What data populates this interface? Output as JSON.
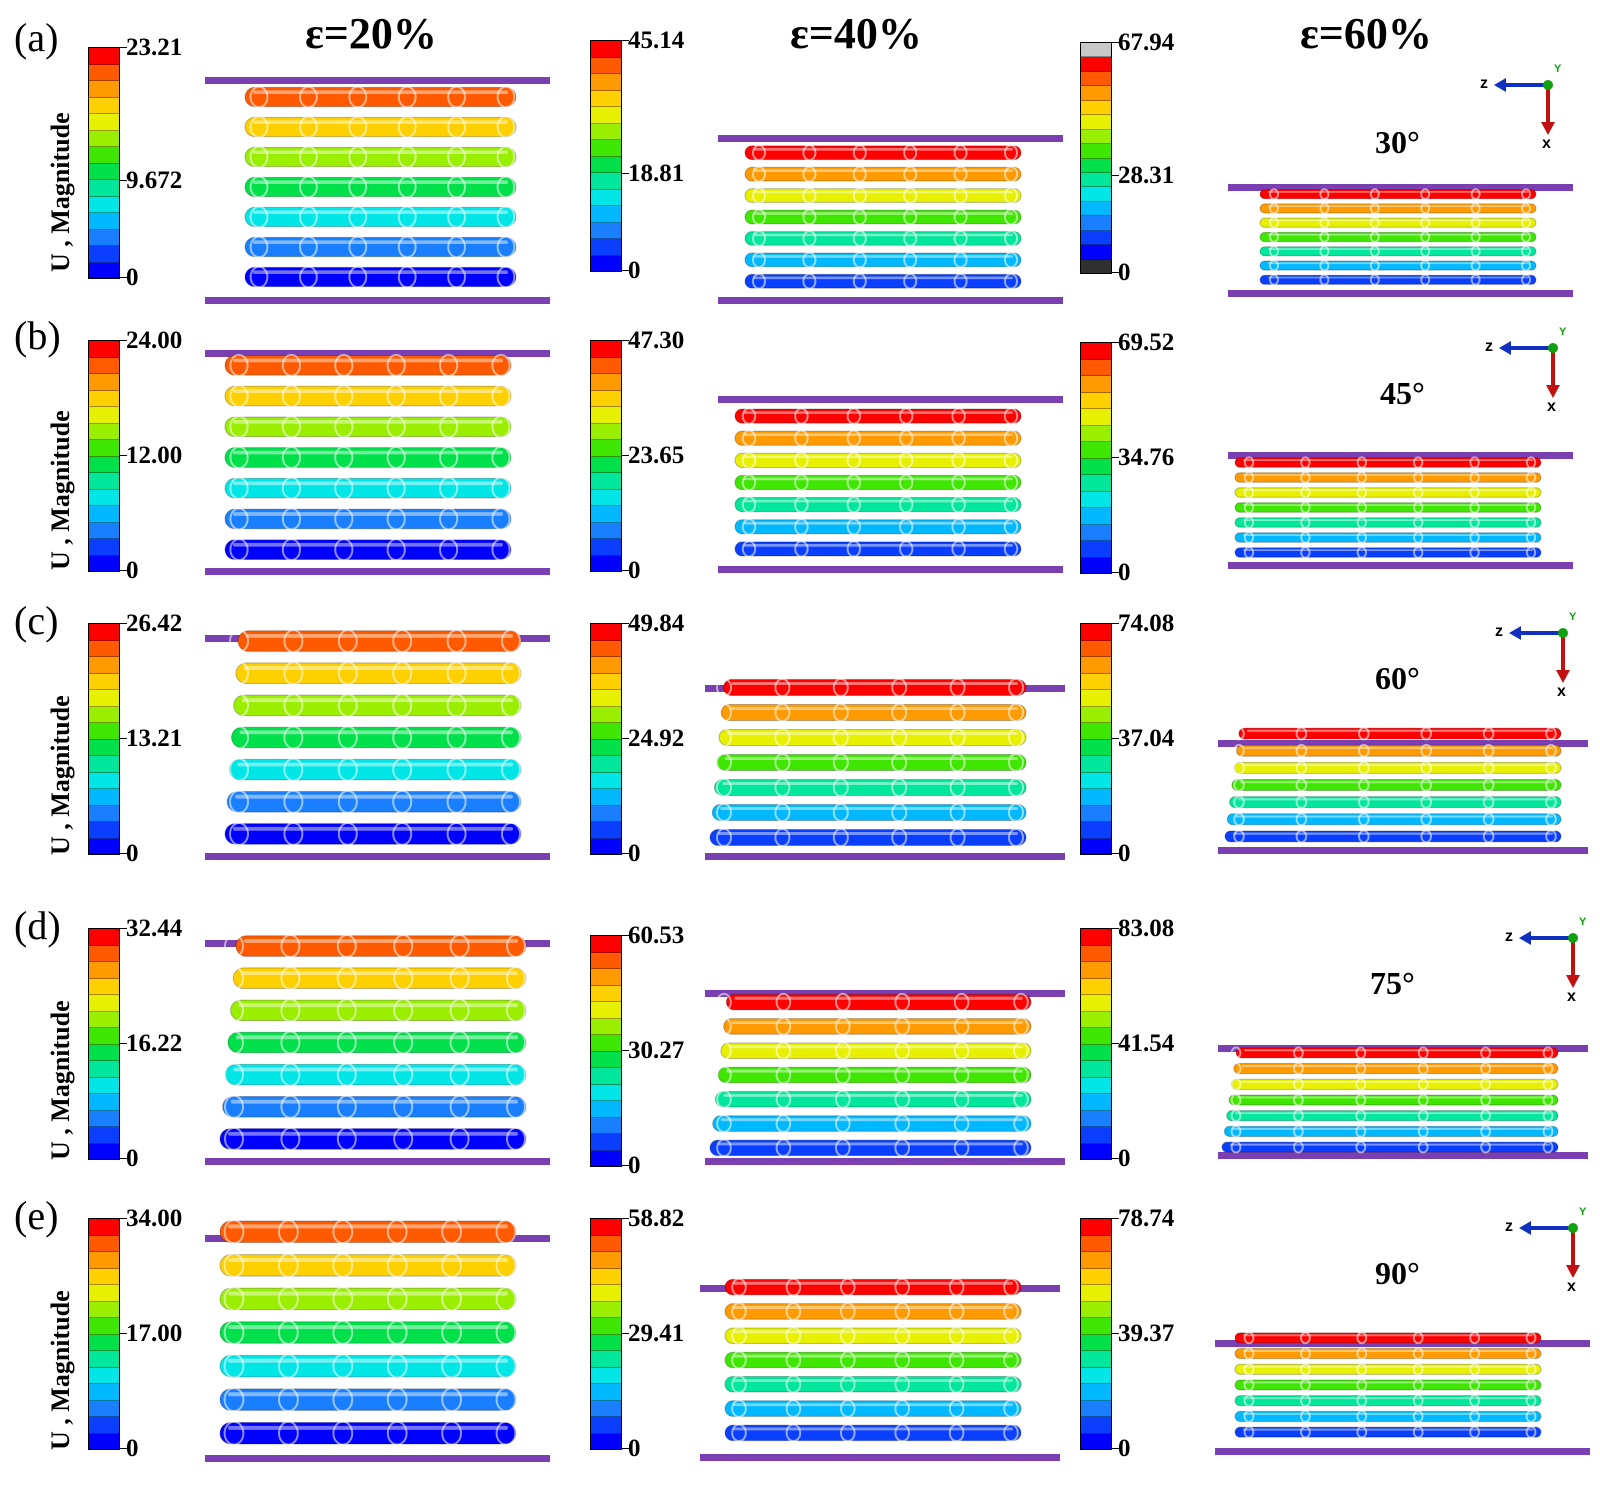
{
  "columns": [
    "ε=20%",
    "ε=40%",
    "ε=60%"
  ],
  "ylabel": "U ,  Magnitude",
  "axis_labels": {
    "z": "z",
    "x": "x",
    "y": "Y"
  },
  "colors": {
    "colormap": [
      "#0000ff",
      "#0a3fff",
      "#1a7fff",
      "#00b8ff",
      "#00e6e6",
      "#00e69a",
      "#00e04a",
      "#3fe600",
      "#9aee00",
      "#e6f000",
      "#ffd000",
      "#ff9a00",
      "#ff5a00",
      "#ff0000"
    ],
    "plate": "#7a3fb0",
    "axis_z": "#1030c0",
    "axis_x": "#c01010",
    "axis_y": "#10a010"
  },
  "rows": [
    {
      "label": "(a)",
      "angle": "30°",
      "bars": [
        {
          "max": "23.21",
          "mid": "9.672",
          "min": "0",
          "mid_frac": 0.42
        },
        {
          "max": "45.14",
          "mid": "18.81",
          "min": "0",
          "mid_frac": 0.42
        },
        {
          "max": "67.94",
          "mid": "28.31",
          "min": "0",
          "mid_frac": 0.42,
          "extended": true
        }
      ]
    },
    {
      "label": "(b)",
      "angle": "45°",
      "bars": [
        {
          "max": "24.00",
          "mid": "12.00",
          "min": "0",
          "mid_frac": 0.5
        },
        {
          "max": "47.30",
          "mid": "23.65",
          "min": "0",
          "mid_frac": 0.5
        },
        {
          "max": "69.52",
          "mid": "34.76",
          "min": "0",
          "mid_frac": 0.5
        }
      ]
    },
    {
      "label": "(c)",
      "angle": "60°",
      "bars": [
        {
          "max": "26.42",
          "mid": "13.21",
          "min": "0",
          "mid_frac": 0.5
        },
        {
          "max": "49.84",
          "mid": "24.92",
          "min": "0",
          "mid_frac": 0.5
        },
        {
          "max": "74.08",
          "mid": "37.04",
          "min": "0",
          "mid_frac": 0.5
        }
      ]
    },
    {
      "label": "(d)",
      "angle": "75°",
      "bars": [
        {
          "max": "32.44",
          "mid": "16.22",
          "min": "0",
          "mid_frac": 0.5
        },
        {
          "max": "60.53",
          "mid": "30.27",
          "min": "0",
          "mid_frac": 0.5
        },
        {
          "max": "83.08",
          "mid": "41.54",
          "min": "0",
          "mid_frac": 0.5
        }
      ]
    },
    {
      "label": "(e)",
      "angle": "90°",
      "bars": [
        {
          "max": "34.00",
          "mid": "17.00",
          "min": "0",
          "mid_frac": 0.5
        },
        {
          "max": "58.82",
          "mid": "29.41",
          "min": "0",
          "mid_frac": 0.5
        },
        {
          "max": "78.74",
          "mid": "39.37",
          "min": "0",
          "mid_frac": 0.5
        }
      ]
    }
  ]
}
